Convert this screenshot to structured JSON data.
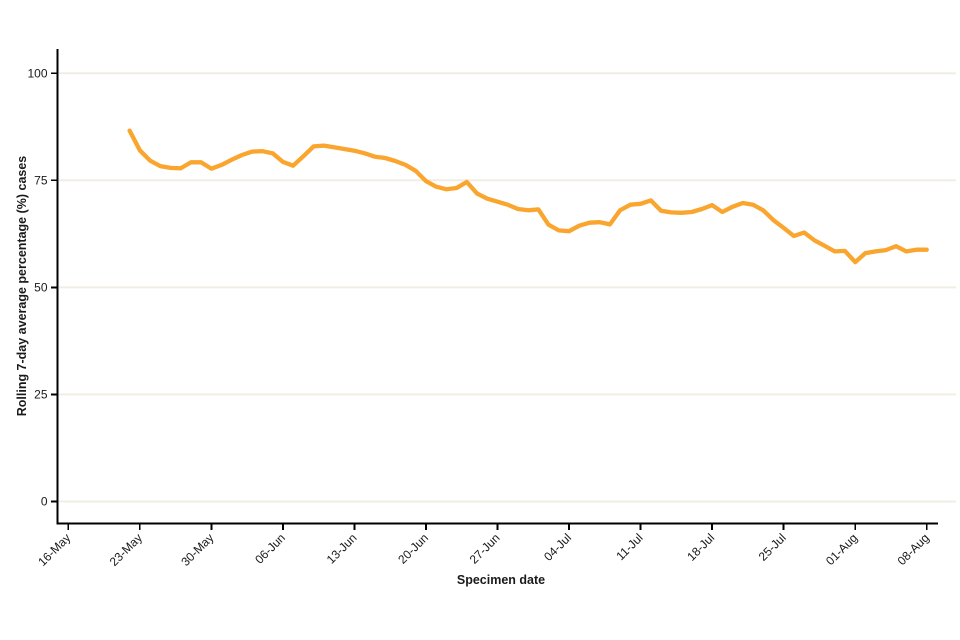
{
  "colors": {
    "line": "#F9A52E",
    "grid": "#F0EEE2",
    "axis": "#000000",
    "text": "#1a1a1a",
    "background": "#FFFFFF"
  },
  "chart_data": {
    "type": "line",
    "title": "",
    "xlabel": "Specimen date",
    "ylabel": "Rolling 7-day average percentage (%) cases",
    "ylim": [
      0,
      100
    ],
    "yticks": [
      0,
      25,
      50,
      75,
      100
    ],
    "xticks": [
      "16-May",
      "23-May",
      "30-May",
      "06-Jun",
      "13-Jun",
      "20-Jun",
      "27-Jun",
      "04-Jul",
      "11-Jul",
      "18-Jul",
      "25-Jul",
      "01-Aug",
      "08-Aug"
    ],
    "grid": "horizontal-only",
    "legend": "none",
    "series": [
      {
        "name": "Rolling 7-day average percentage cases",
        "color": "#F9A52E",
        "x": [
          "22-May",
          "23-May",
          "24-May",
          "25-May",
          "26-May",
          "27-May",
          "28-May",
          "29-May",
          "30-May",
          "31-May",
          "01-Jun",
          "02-Jun",
          "03-Jun",
          "04-Jun",
          "05-Jun",
          "06-Jun",
          "07-Jun",
          "08-Jun",
          "09-Jun",
          "10-Jun",
          "11-Jun",
          "12-Jun",
          "13-Jun",
          "14-Jun",
          "15-Jun",
          "16-Jun",
          "17-Jun",
          "18-Jun",
          "19-Jun",
          "20-Jun",
          "21-Jun",
          "22-Jun",
          "23-Jun",
          "24-Jun",
          "25-Jun",
          "26-Jun",
          "27-Jun",
          "28-Jun",
          "29-Jun",
          "30-Jun",
          "01-Jul",
          "02-Jul",
          "03-Jul",
          "04-Jul",
          "05-Jul",
          "06-Jul",
          "07-Jul",
          "08-Jul",
          "09-Jul",
          "10-Jul",
          "11-Jul",
          "12-Jul",
          "13-Jul",
          "14-Jul",
          "15-Jul",
          "16-Jul",
          "17-Jul",
          "18-Jul",
          "19-Jul",
          "20-Jul",
          "21-Jul",
          "22-Jul",
          "23-Jul",
          "24-Jul",
          "25-Jul",
          "26-Jul",
          "27-Jul",
          "28-Jul",
          "29-Jul",
          "30-Jul",
          "31-Jul",
          "01-Aug",
          "02-Aug",
          "03-Aug",
          "04-Aug",
          "05-Aug",
          "06-Aug",
          "07-Aug",
          "08-Aug"
        ],
        "values": [
          86.6,
          82.0,
          79.6,
          78.3,
          77.9,
          77.8,
          79.2,
          79.2,
          77.7,
          78.6,
          79.8,
          80.9,
          81.7,
          81.8,
          81.3,
          79.3,
          78.4,
          80.6,
          82.9,
          83.1,
          82.7,
          82.3,
          81.9,
          81.3,
          80.5,
          80.2,
          79.5,
          78.6,
          77.2,
          74.8,
          73.5,
          72.9,
          73.2,
          74.6,
          71.9,
          70.7,
          70.0,
          69.3,
          68.3,
          68.0,
          68.2,
          64.6,
          63.3,
          63.1,
          64.4,
          65.1,
          65.2,
          64.7,
          68.0,
          69.3,
          69.5,
          70.3,
          67.9,
          67.5,
          67.4,
          67.6,
          68.3,
          69.2,
          67.6,
          68.8,
          69.7,
          69.3,
          68.0,
          65.7,
          63.9,
          62.0,
          62.8,
          61.0,
          59.7,
          58.4,
          58.5,
          55.9,
          58.0,
          58.4,
          58.7,
          59.6,
          58.4,
          58.8,
          58.8
        ]
      }
    ]
  }
}
